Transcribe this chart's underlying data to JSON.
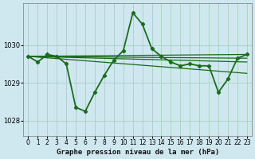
{
  "background_color": "#cfe8f0",
  "grid_color": "#a8cfc0",
  "line_color": "#1a6b1a",
  "title": "Graphe pression niveau de la mer (hPa)",
  "xlim": [
    -0.5,
    23.5
  ],
  "ylim": [
    1027.6,
    1031.1
  ],
  "yticks": [
    1028,
    1029,
    1030
  ],
  "xticks": [
    0,
    1,
    2,
    3,
    4,
    5,
    6,
    7,
    8,
    9,
    10,
    11,
    12,
    13,
    14,
    15,
    16,
    17,
    18,
    19,
    20,
    21,
    22,
    23
  ],
  "main_line": {
    "x": [
      0,
      1,
      2,
      3,
      4,
      5,
      6,
      7,
      8,
      9,
      10,
      11,
      12,
      13,
      14,
      15,
      16,
      17,
      18,
      19,
      20,
      21,
      22,
      23
    ],
    "y": [
      1029.7,
      1029.55,
      1029.75,
      1029.7,
      1029.5,
      1028.35,
      1028.25,
      1028.75,
      1029.2,
      1029.6,
      1029.85,
      1030.85,
      1030.55,
      1029.9,
      1029.7,
      1029.55,
      1029.45,
      1029.5,
      1029.45,
      1029.45,
      1028.75,
      1029.1,
      1029.65,
      1029.75
    ]
  },
  "fan_lines": [
    {
      "x": [
        0,
        23
      ],
      "y": [
        1029.7,
        1029.75
      ]
    },
    {
      "x": [
        0,
        23
      ],
      "y": [
        1029.7,
        1029.65
      ]
    },
    {
      "x": [
        0,
        23
      ],
      "y": [
        1029.7,
        1029.55
      ]
    },
    {
      "x": [
        0,
        23
      ],
      "y": [
        1029.7,
        1029.25
      ]
    }
  ],
  "title_fontsize": 6.5,
  "tick_fontsize": 5.5
}
